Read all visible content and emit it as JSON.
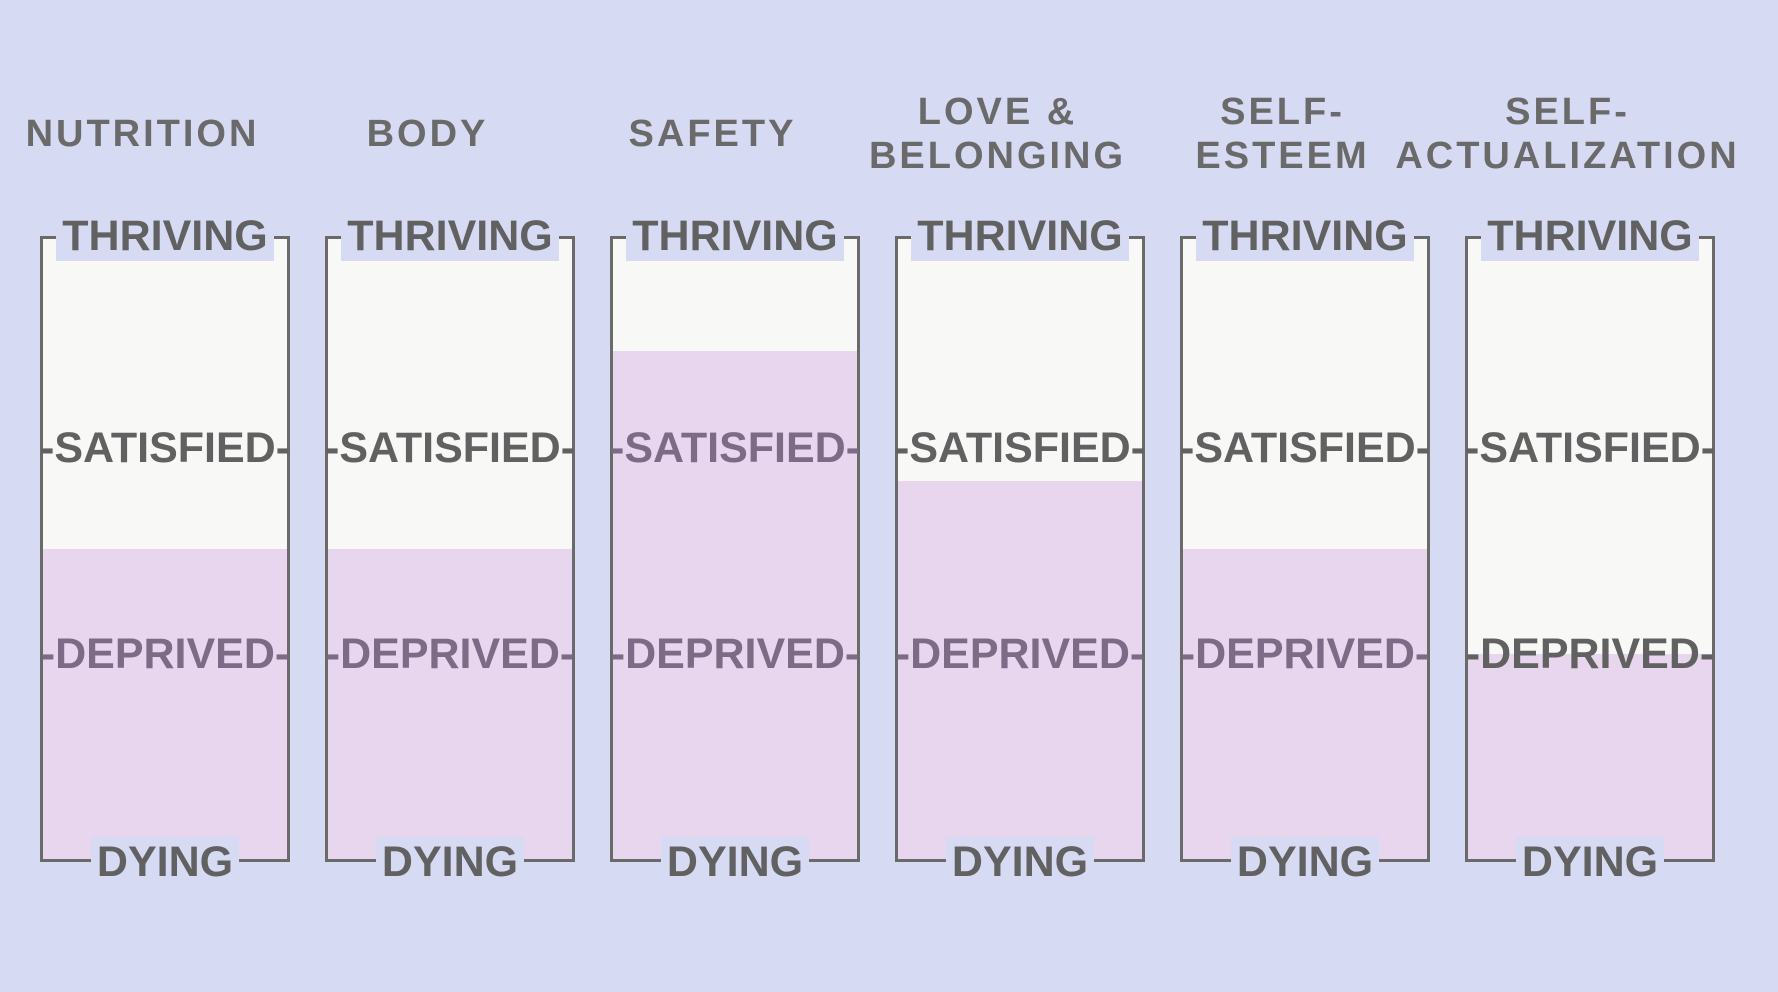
{
  "levels": {
    "thriving": "THRIVING",
    "satisfied": "-SATISFIED-",
    "deprived": "-DEPRIVED-",
    "dying": "DYING"
  },
  "colors": {
    "background": "#d7daf3",
    "meter_empty": "#f8f8f6",
    "meter_fill": "#e8d5ee",
    "frame": "#6a6a6a",
    "label_dark": "#616161",
    "label_on_fill": "#7d6a87"
  },
  "needs": [
    {
      "title_lines": [
        "NUTRITION"
      ],
      "fill_fraction": 0.5
    },
    {
      "title_lines": [
        "BODY"
      ],
      "fill_fraction": 0.5
    },
    {
      "title_lines": [
        "SAFETY"
      ],
      "fill_fraction": 0.82
    },
    {
      "title_lines": [
        "LOVE &",
        "BELONGING"
      ],
      "fill_fraction": 0.61
    },
    {
      "title_lines": [
        "SELF-",
        "ESTEEM"
      ],
      "fill_fraction": 0.5
    },
    {
      "title_lines": [
        "SELF-",
        "ACTUALIZATION"
      ],
      "fill_fraction": 0.33
    }
  ]
}
